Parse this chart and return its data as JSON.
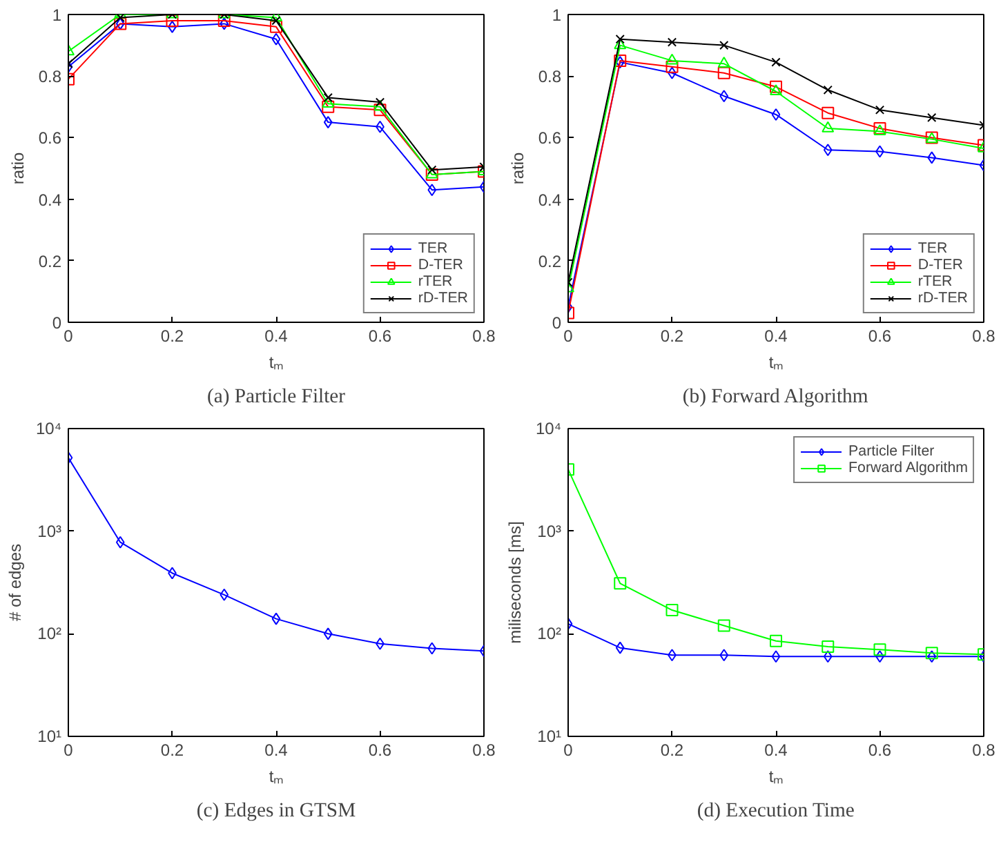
{
  "chart_data": [
    {
      "type": "line",
      "title": "(a) Particle Filter",
      "xlabel": "tₘ",
      "ylabel": "ratio",
      "x": [
        0,
        0.1,
        0.2,
        0.3,
        0.4,
        0.5,
        0.6,
        0.7,
        0.8
      ],
      "xlim": [
        0,
        0.8
      ],
      "xticks": [
        0,
        0.2,
        0.4,
        0.6,
        0.8
      ],
      "ylim": [
        0,
        1
      ],
      "yticks": [
        0,
        0.2,
        0.4,
        0.6,
        0.8,
        1
      ],
      "grid": false,
      "legend": "bottom right",
      "series": [
        {
          "name": "TER",
          "color": "#0000ff",
          "marker": "diamond",
          "values": [
            0.83,
            0.97,
            0.96,
            0.97,
            0.92,
            0.65,
            0.635,
            0.43,
            0.44
          ]
        },
        {
          "name": "D-TER",
          "color": "#ff0000",
          "marker": "square",
          "values": [
            0.79,
            0.97,
            0.98,
            0.98,
            0.96,
            0.7,
            0.69,
            0.48,
            0.49
          ]
        },
        {
          "name": "rTER",
          "color": "#00ff00",
          "marker": "triangle",
          "values": [
            0.88,
            1.0,
            1.0,
            1.0,
            0.99,
            0.71,
            0.7,
            0.48,
            0.49
          ]
        },
        {
          "name": "rD-TER",
          "color": "#000000",
          "marker": "cross",
          "values": [
            0.84,
            0.99,
            1.0,
            1.0,
            0.98,
            0.73,
            0.715,
            0.495,
            0.505
          ]
        }
      ]
    },
    {
      "type": "line",
      "title": "(b) Forward Algorithm",
      "xlabel": "tₘ",
      "ylabel": "ratio",
      "x": [
        0,
        0.1,
        0.2,
        0.3,
        0.4,
        0.5,
        0.6,
        0.7,
        0.8
      ],
      "xlim": [
        0,
        0.8
      ],
      "xticks": [
        0,
        0.2,
        0.4,
        0.6,
        0.8
      ],
      "ylim": [
        0,
        1
      ],
      "yticks": [
        0,
        0.2,
        0.4,
        0.6,
        0.8,
        1
      ],
      "grid": false,
      "legend": "bottom right",
      "series": [
        {
          "name": "TER",
          "color": "#0000ff",
          "marker": "diamond",
          "values": [
            0.05,
            0.845,
            0.81,
            0.735,
            0.675,
            0.56,
            0.555,
            0.535,
            0.51
          ]
        },
        {
          "name": "D-TER",
          "color": "#ff0000",
          "marker": "square",
          "values": [
            0.03,
            0.85,
            0.83,
            0.81,
            0.765,
            0.68,
            0.63,
            0.6,
            0.575
          ]
        },
        {
          "name": "rTER",
          "color": "#00ff00",
          "marker": "triangle",
          "values": [
            0.11,
            0.9,
            0.85,
            0.84,
            0.75,
            0.63,
            0.62,
            0.595,
            0.565
          ]
        },
        {
          "name": "rD-TER",
          "color": "#000000",
          "marker": "cross",
          "values": [
            0.13,
            0.92,
            0.91,
            0.9,
            0.845,
            0.755,
            0.69,
            0.665,
            0.64
          ]
        }
      ]
    },
    {
      "type": "line",
      "title": "(c) Edges in GTSM",
      "xlabel": "tₘ",
      "ylabel": "# of edges",
      "x": [
        0,
        0.1,
        0.2,
        0.3,
        0.4,
        0.5,
        0.6,
        0.7,
        0.8
      ],
      "xlim": [
        0,
        0.8
      ],
      "xticks": [
        0,
        0.2,
        0.4,
        0.6,
        0.8
      ],
      "log": "y",
      "ylim": [
        10,
        10000
      ],
      "yticks": [
        {
          "value": 10,
          "label": "10¹"
        },
        {
          "value": 100,
          "label": "10²"
        },
        {
          "value": 1000,
          "label": "10³"
        },
        {
          "value": 10000,
          "label": "10⁴"
        }
      ],
      "grid": false,
      "legend": false,
      "series": [
        {
          "color": "#0000ff",
          "marker": "diamond",
          "values": [
            5200,
            780,
            390,
            240,
            140,
            100,
            80,
            72,
            68
          ]
        }
      ]
    },
    {
      "type": "line",
      "title": "(d) Execution Time",
      "xlabel": "tₘ",
      "ylabel": "miliseconds [ms]",
      "x": [
        0,
        0.1,
        0.2,
        0.3,
        0.4,
        0.5,
        0.6,
        0.7,
        0.8
      ],
      "xlim": [
        0,
        0.8
      ],
      "xticks": [
        0,
        0.2,
        0.4,
        0.6,
        0.8
      ],
      "log": "y",
      "ylim": [
        10,
        10000
      ],
      "yticks": [
        {
          "value": 10,
          "label": "10¹"
        },
        {
          "value": 100,
          "label": "10²"
        },
        {
          "value": 1000,
          "label": "10³"
        },
        {
          "value": 10000,
          "label": "10⁴"
        }
      ],
      "grid": false,
      "legend": "top right",
      "series": [
        {
          "name": "Particle Filter",
          "color": "#0000ff",
          "marker": "diamond",
          "values": [
            125,
            73,
            62,
            62,
            60,
            60,
            60,
            60,
            60
          ]
        },
        {
          "name": "Forward Algorithm",
          "color": "#00ff00",
          "marker": "square",
          "values": [
            4000,
            310,
            170,
            120,
            85,
            75,
            70,
            65,
            63
          ]
        }
      ]
    }
  ]
}
